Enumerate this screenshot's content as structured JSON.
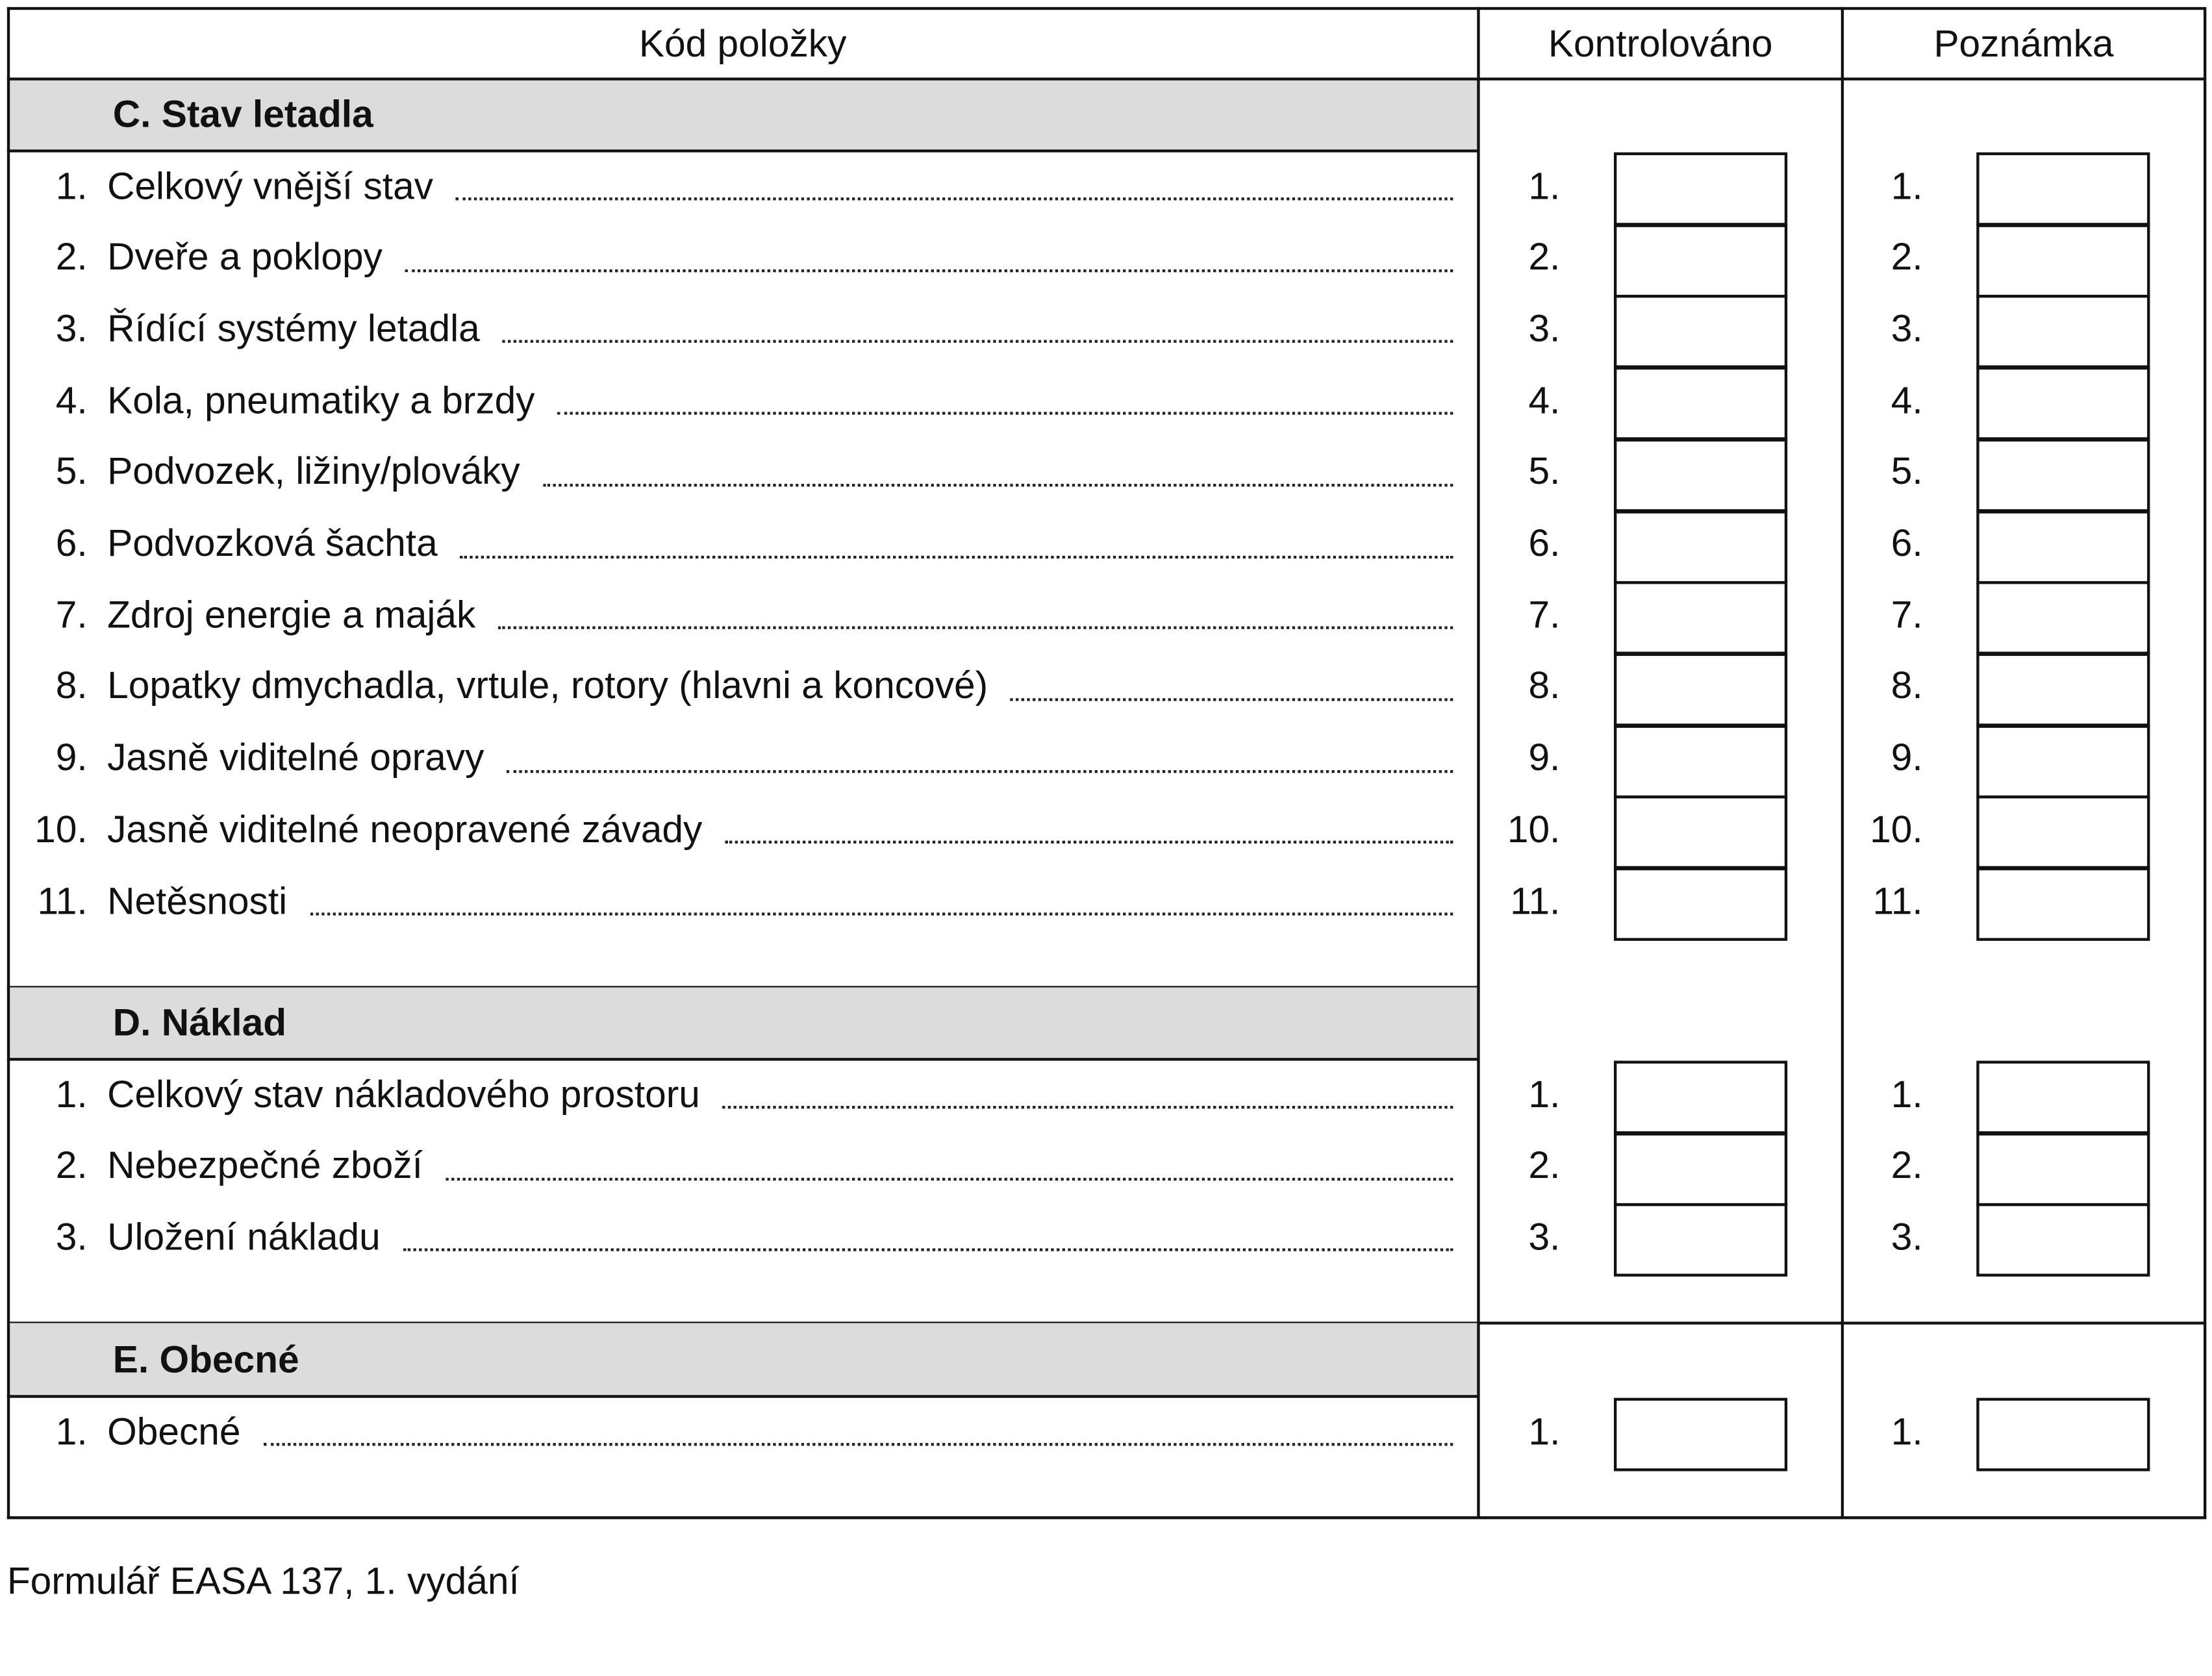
{
  "header": {
    "col1": "Kód položky",
    "col2": "Kontrolováno",
    "col3": "Poznámka"
  },
  "sections": [
    {
      "title": "C. Stav letadla",
      "items": [
        {
          "num": "1.",
          "label": "Celkový vnější stav"
        },
        {
          "num": "2.",
          "label": "Dveře a poklopy"
        },
        {
          "num": "3.",
          "label": "Řídící systémy letadla"
        },
        {
          "num": "4.",
          "label": "Kola, pneumatiky a brzdy"
        },
        {
          "num": "5.",
          "label": "Podvozek, ližiny/plováky"
        },
        {
          "num": "6.",
          "label": "Podvozková šachta"
        },
        {
          "num": "7.",
          "label": "Zdroj energie a maják"
        },
        {
          "num": "8.",
          "label": "Lopatky dmychadla, vrtule, rotory (hlavni a koncové)"
        },
        {
          "num": "9.",
          "label": "Jasně viditelné opravy"
        },
        {
          "num": "10.",
          "label": "Jasně viditelné neopravené závady"
        },
        {
          "num": "11.",
          "label": "Netěsnosti"
        }
      ]
    },
    {
      "title": "D. Náklad",
      "items": [
        {
          "num": "1.",
          "label": "Celkový stav nákladového prostoru"
        },
        {
          "num": "2.",
          "label": "Nebezpečné zboží"
        },
        {
          "num": "3.",
          "label": "Uložení nákladu"
        }
      ]
    },
    {
      "title": "E. Obecné",
      "items": [
        {
          "num": "1.",
          "label": "Obecné"
        }
      ]
    }
  ],
  "footer": "Formulář EASA 137, 1. vydání"
}
